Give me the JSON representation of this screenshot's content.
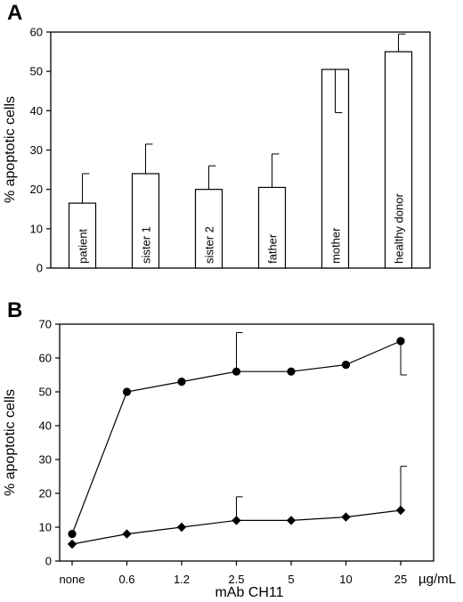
{
  "chart_data": [
    {
      "panel": "A",
      "type": "bar",
      "ylabel": "% apoptotic cells",
      "ylim": [
        0,
        60
      ],
      "yticks": [
        0,
        10,
        20,
        30,
        40,
        50,
        60
      ],
      "categories": [
        "patient",
        "sister 1",
        "sister 2",
        "father",
        "mother",
        "healthy donor"
      ],
      "values": [
        16.5,
        24,
        20,
        20.5,
        50.5,
        55
      ],
      "error_bars": [
        {
          "direction": "up",
          "value": 7.5
        },
        {
          "direction": "up",
          "value": 7.5
        },
        {
          "direction": "up",
          "value": 6
        },
        {
          "direction": "up",
          "value": 8.5
        },
        {
          "direction": "down",
          "value": 11
        },
        {
          "direction": "up",
          "value": 4.5
        }
      ],
      "grid": false
    },
    {
      "panel": "B",
      "type": "line",
      "ylabel": "% apoptotic cells",
      "xlabel": "mAb CH11",
      "x_unit": "µg/mL",
      "ylim": [
        0,
        70
      ],
      "yticks": [
        0,
        10,
        20,
        30,
        40,
        50,
        60,
        70
      ],
      "categories": [
        "none",
        "0.6",
        "1.2",
        "2.5",
        "5",
        "10",
        "25"
      ],
      "series": [
        {
          "marker": "circle",
          "values": [
            8,
            50,
            53,
            56,
            56,
            58,
            65
          ],
          "error_bars": [
            null,
            null,
            null,
            {
              "direction": "up",
              "value": 11.5
            },
            null,
            null,
            {
              "direction": "down",
              "value": 10
            }
          ]
        },
        {
          "marker": "diamond",
          "values": [
            5,
            8,
            10,
            12,
            12,
            13,
            15
          ],
          "error_bars": [
            null,
            null,
            null,
            {
              "direction": "up",
              "value": 7
            },
            null,
            null,
            {
              "direction": "up",
              "value": 13
            }
          ]
        }
      ],
      "grid": false
    }
  ],
  "colors": {
    "ink": "#000000",
    "bar_fill": "#ffffff",
    "background": "#ffffff"
  }
}
